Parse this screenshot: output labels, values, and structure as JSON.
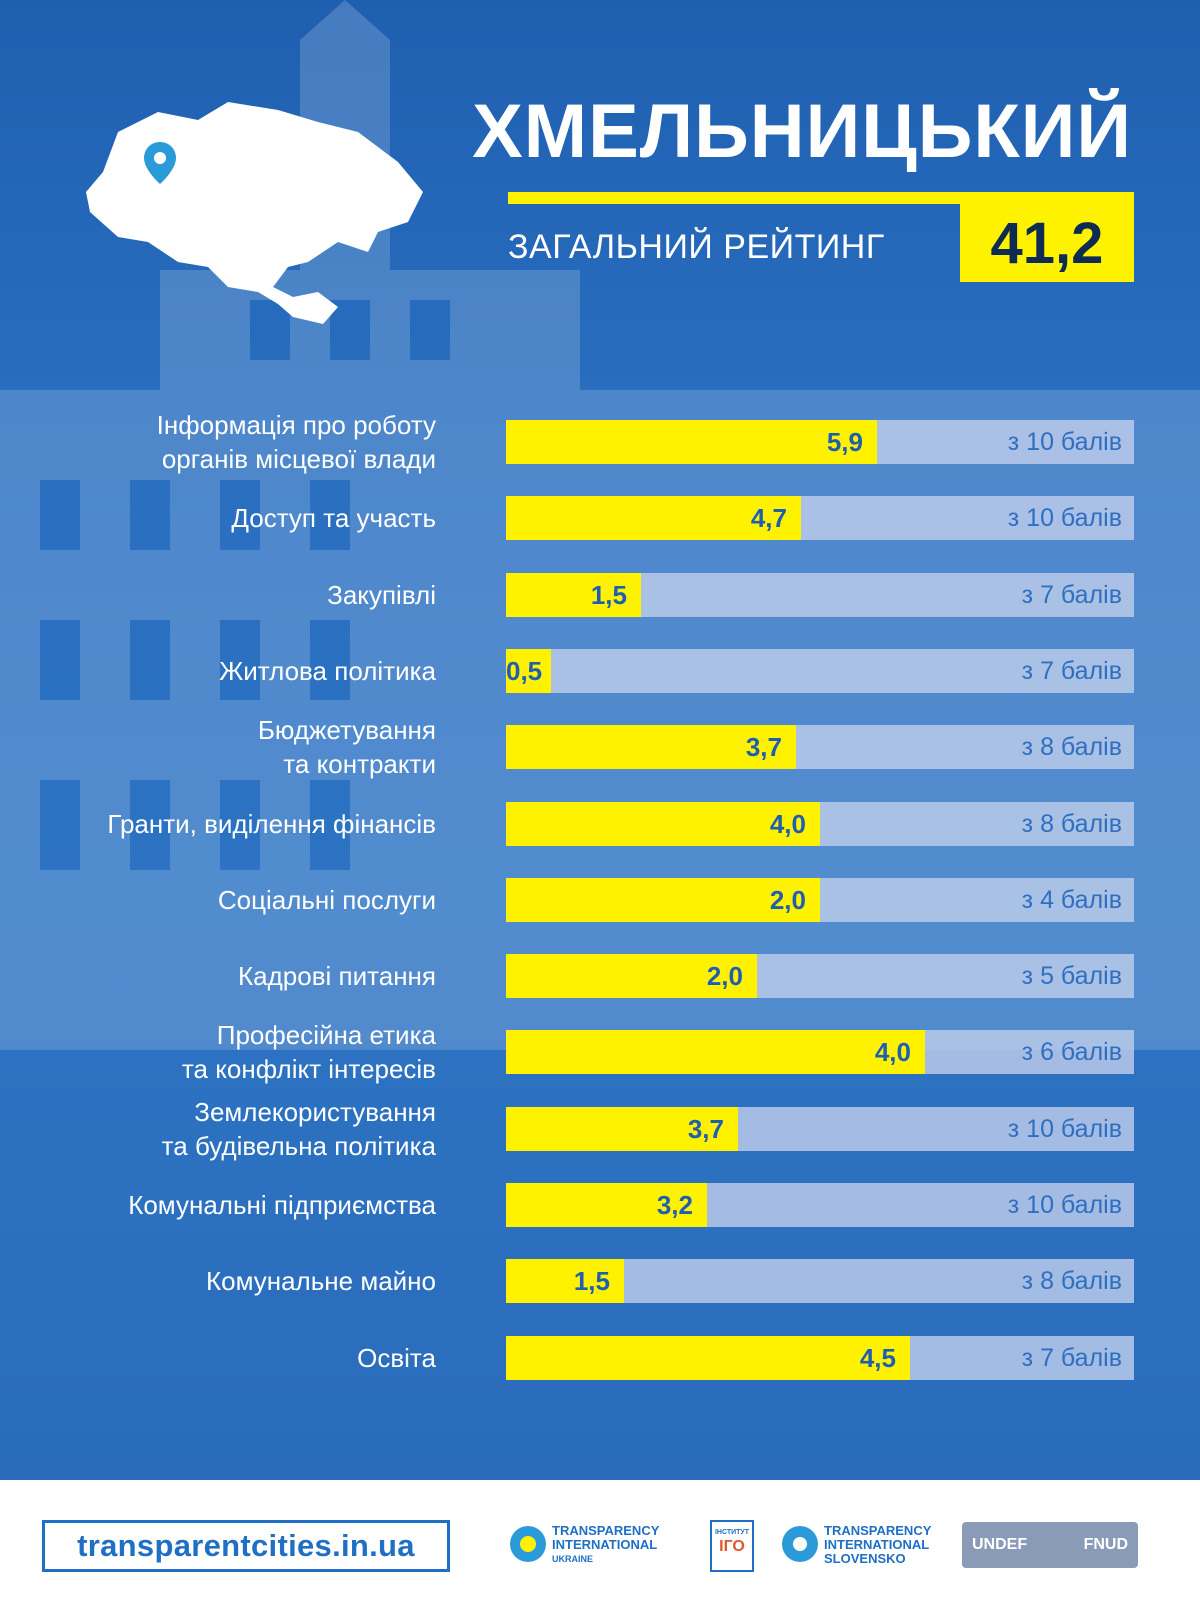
{
  "header": {
    "city": "ХМЕЛЬНИЦЬКИЙ",
    "overall_label": "ЗАГАЛЬНИЙ РЕЙТИНГ",
    "overall_score": "41,2"
  },
  "colors": {
    "background": "#2a6fc0",
    "bar_fill": "#fff200",
    "bar_track": "#becdeb",
    "accent_text": "#1f5fb0"
  },
  "chart_data": {
    "type": "bar",
    "orientation": "horizontal",
    "categories": [
      [
        "Інформація про роботу",
        "органів місцевої влади"
      ],
      [
        "Доступ та участь"
      ],
      [
        "Закупівлі"
      ],
      [
        "Житлова політика"
      ],
      [
        "Бюджетування ",
        "та контракти"
      ],
      [
        "Гранти, виділення фінансів"
      ],
      [
        "Соціальні послуги"
      ],
      [
        "Кадрові питання"
      ],
      [
        "Професійна етика",
        "та конфлікт інтересів"
      ],
      [
        "Землекористування",
        "та будівельна політика"
      ],
      [
        "Комунальні підприємства"
      ],
      [
        "Комунальне майно"
      ],
      [
        "Освіта"
      ]
    ],
    "values": [
      5.9,
      4.7,
      1.5,
      0.5,
      3.7,
      4.0,
      2.0,
      2.0,
      4.0,
      3.7,
      3.2,
      1.5,
      4.5
    ],
    "value_labels": [
      "5,9",
      "4,7",
      "1,5",
      "0,5",
      "3,7",
      "4,0",
      "2,0",
      "2,0",
      "4,0",
      "3,7",
      "3,2",
      "1,5",
      "4,5"
    ],
    "max_values": [
      10,
      10,
      7,
      7,
      8,
      8,
      4,
      5,
      6,
      10,
      10,
      8,
      7
    ],
    "max_labels": [
      "з 10 балів",
      "з 10 балів",
      "з 7 балів",
      "з 7 балів",
      "з 8 балів",
      "з 8 балів",
      "з 4 балів",
      "з 5 балів",
      "з 6 балів",
      "з 10 балів",
      "з 10 балів",
      "з 8 балів",
      "з 7 балів"
    ],
    "xlim": [
      0,
      10
    ]
  },
  "footer": {
    "site": "transparentcities.in.ua",
    "logos": [
      {
        "name": "ti-ukraine-logo",
        "lines": [
          "TRANSPARENCY",
          "INTERNATIONAL",
          "UKRAINE"
        ]
      },
      {
        "name": "igo-logo",
        "lines": [
          "ІНСТИТУТ",
          "ІГО"
        ]
      },
      {
        "name": "ti-slovensko-logo",
        "lines": [
          "TRANSPARENCY",
          "INTERNATIONAL",
          "SLOVENSKO"
        ]
      },
      {
        "name": "undef-logo",
        "lines": [
          "UNDEF",
          "FNUD"
        ]
      }
    ]
  }
}
